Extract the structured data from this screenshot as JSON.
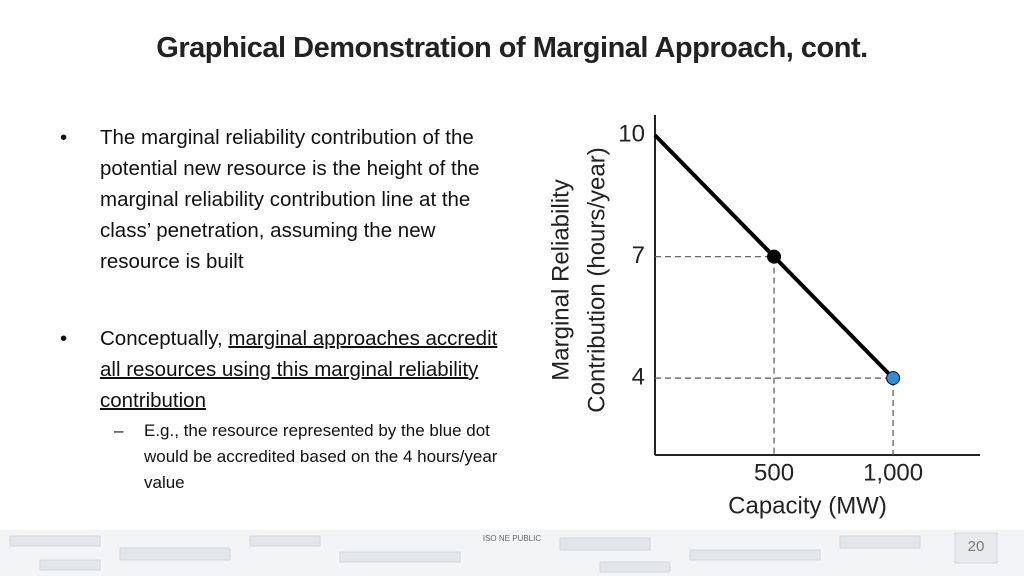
{
  "title": "Graphical Demonstration of Marginal Approach, cont.",
  "bullets": [
    {
      "text": "The marginal reliability contribution of the potential new resource is the height of the marginal reliability contribution line at the class’ penetration, assuming the new resource is built"
    },
    {
      "text": "Conceptually, ",
      "underlined": "marginal approaches accredit all resources using this marginal reliability contribution",
      "sub": {
        "marker": "–",
        "text": "E.g., the resource represented by the blue dot would be accredited based on the 4 hours/year value"
      }
    }
  ],
  "chart_data": {
    "type": "line",
    "xlabel": "Capacity (MW)",
    "ylabel": [
      "Marginal Reliability",
      "Contribution (hours/year)"
    ],
    "xlim": [
      0,
      1365
    ],
    "ylim": [
      2.1,
      10.5
    ],
    "xticks": [
      500,
      {
        "value": 1000,
        "label": "1,000"
      }
    ],
    "yticks": [
      4,
      7,
      10
    ],
    "series": [
      {
        "color": "#000000",
        "x": [
          0,
          1000
        ],
        "values": [
          10,
          4
        ]
      }
    ],
    "points": [
      {
        "x": 500,
        "y": 7,
        "color": "#000000"
      },
      {
        "x": 1000,
        "y": 4,
        "color": "#2e8fd6"
      }
    ]
  },
  "footer": {
    "label": "ISO NE PUBLIC",
    "page": "20"
  }
}
